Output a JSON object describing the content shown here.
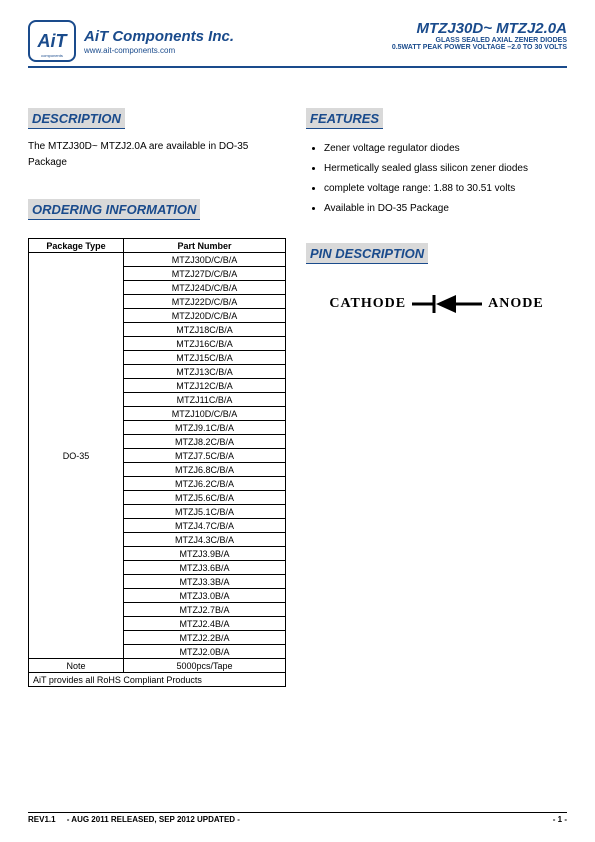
{
  "header": {
    "company_name": "AiT Components Inc.",
    "company_url": "www.ait-components.com",
    "logo_text": "AiT",
    "logo_sub": "components",
    "part_title": "MTZJ30D~ MTZJ2.0A",
    "part_sub1": "GLASS SEALED AXIAL ZENER DIODES",
    "part_sub2": "0.5WATT PEAK POWER VOLTAGE –2.0 TO 30 VOLTS"
  },
  "colors": {
    "brand": "#1a4b8c",
    "section_bg": "#d9d9d9",
    "border": "#000000",
    "text": "#000000"
  },
  "sections": {
    "description_head": "DESCRIPTION",
    "features_head": "FEATURES",
    "ordering_head": "ORDERING INFORMATION",
    "pin_head": "PIN DESCRIPTION"
  },
  "description_text": "The MTZJ30D~ MTZJ2.0A are available in DO-35 Package",
  "features": [
    "Zener voltage regulator diodes",
    "Hermetically sealed glass silicon zener diodes",
    "complete voltage range: 1.88 to 30.51 volts",
    "Available in DO-35 Package"
  ],
  "ordering_table": {
    "columns": [
      "Package Type",
      "Part Number"
    ],
    "package_type": "DO-35",
    "part_numbers": [
      "MTZJ30D/C/B/A",
      "MTZJ27D/C/B/A",
      "MTZJ24D/C/B/A",
      "MTZJ22D/C/B/A",
      "MTZJ20D/C/B/A",
      "MTZJ18C/B/A",
      "MTZJ16C/B/A",
      "MTZJ15C/B/A",
      "MTZJ13C/B/A",
      "MTZJ12C/B/A",
      "MTZJ11C/B/A",
      "MTZJ10D/C/B/A",
      "MTZJ9.1C/B/A",
      "MTZJ8.2C/B/A",
      "MTZJ7.5C/B/A",
      "MTZJ6.8C/B/A",
      "MTZJ6.2C/B/A",
      "MTZJ5.6C/B/A",
      "MTZJ5.1C/B/A",
      "MTZJ4.7C/B/A",
      "MTZJ4.3C/B/A",
      "MTZJ3.9B/A",
      "MTZJ3.6B/A",
      "MTZJ3.3B/A",
      "MTZJ3.0B/A",
      "MTZJ2.7B/A",
      "MTZJ2.4B/A",
      "MTZJ2.2B/A",
      "MTZJ2.0B/A"
    ],
    "note_label": "Note",
    "note_value": "5000pcs/Tape",
    "footer_note": "AiT provides all RoHS Compliant Products"
  },
  "pin": {
    "cathode": "CATHODE",
    "anode": "ANODE"
  },
  "footer": {
    "rev": "REV1.1",
    "date": "- AUG 2011 RELEASED, SEP 2012 UPDATED -",
    "page": "- 1 -"
  }
}
